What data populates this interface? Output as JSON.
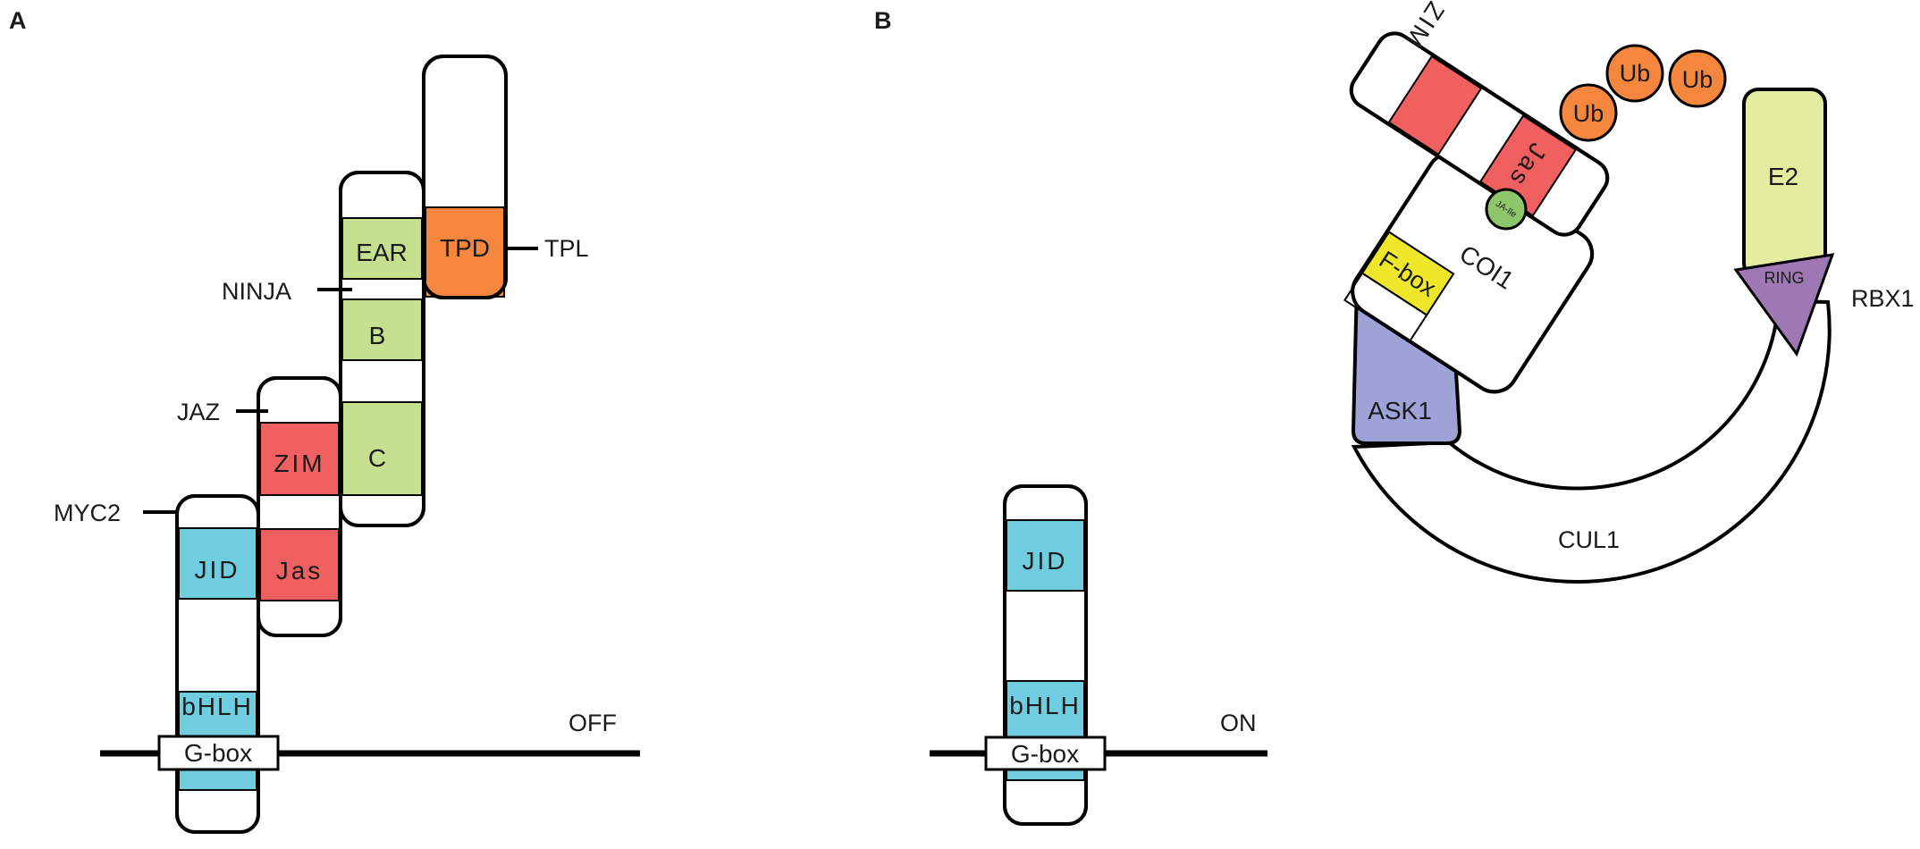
{
  "panels": {
    "a": "A",
    "b": "B"
  },
  "panelA": {
    "labels": {
      "tpl": "TPL",
      "ninja": "NINJA",
      "jaz": "JAZ",
      "myc2": "MYC2",
      "state": "OFF"
    },
    "domains": {
      "tpd": "TPD",
      "ear": "EAR",
      "b": "B",
      "c": "C",
      "zim": "ZIM",
      "jas": "Jas",
      "jid": "JID",
      "bhlh": "bHLH",
      "gbox": "G-box"
    }
  },
  "panelB": {
    "labels": {
      "rbx1": "RBX1",
      "cul1": "CUL1",
      "coi1": "COI1",
      "ask1": "ASK1",
      "e2": "E2",
      "ring": "RING",
      "fbox": "F-box",
      "jaile": "JA-Ile",
      "ub1": "Ub",
      "ub2": "Ub",
      "ub3": "Ub",
      "zim": "ZIM",
      "jas": "Jas",
      "state": "ON"
    },
    "domains": {
      "jid": "JID",
      "bhlh": "bHLH",
      "gbox": "G-box"
    }
  },
  "colors": {
    "jaz_red": "#F06060",
    "myc_cyan": "#70CCDF",
    "ninja_green": "#C5E08E",
    "tpd_orange": "#F4863E",
    "ub_orange": "#F4863E",
    "e2_yellowgreen": "#E3EDA0",
    "ring_purple": "#9D78B3",
    "ask_lavender": "#9FA2D6",
    "fbox_yellow": "#EEE72A",
    "jaile_green": "#8DC66B"
  }
}
